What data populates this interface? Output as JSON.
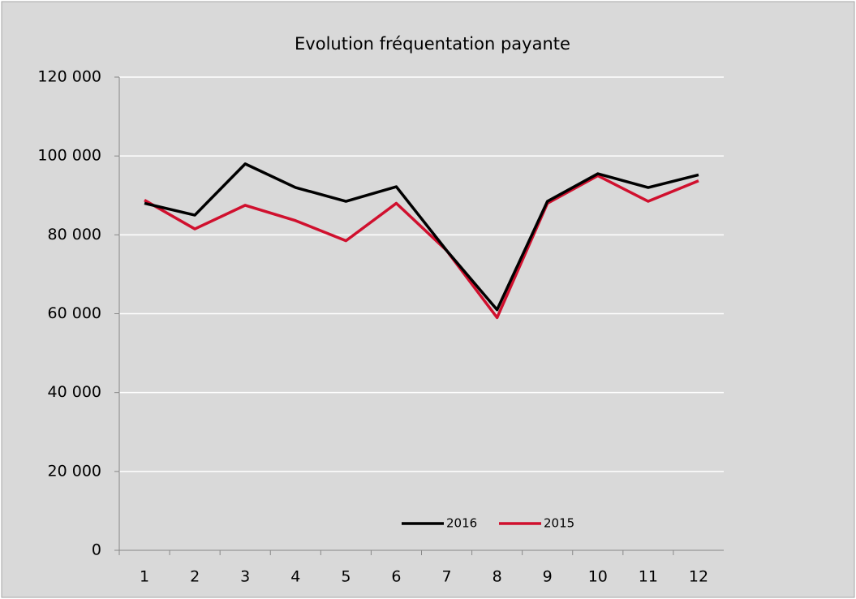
{
  "chart_data": {
    "type": "line",
    "title": "Evolution fréquentation payante",
    "categories": [
      "1",
      "2",
      "3",
      "4",
      "5",
      "6",
      "7",
      "8",
      "9",
      "10",
      "11",
      "12"
    ],
    "series": [
      {
        "name": "2016",
        "color": "#000000",
        "values": [
          88000,
          85000,
          98000,
          92000,
          88500,
          92200,
          76000,
          61000,
          88500,
          95500,
          92000,
          95200
        ]
      },
      {
        "name": "2015",
        "color": "#d0102e",
        "values": [
          88800,
          81500,
          87500,
          83600,
          78500,
          88000,
          76000,
          59000,
          88000,
          95000,
          88500,
          93700
        ]
      }
    ],
    "ylim": [
      0,
      120000
    ],
    "yticks": [
      0,
      {
        "value": 20000,
        "label": "20 000"
      },
      {
        "value": 40000,
        "label": "40 000"
      },
      {
        "value": 60000,
        "label": "60 000"
      },
      {
        "value": 80000,
        "label": "80 000"
      },
      {
        "value": 100000,
        "label": "100 000"
      },
      {
        "value": 120000,
        "label": "120 000"
      }
    ],
    "grid": true,
    "legend": "bottom"
  }
}
